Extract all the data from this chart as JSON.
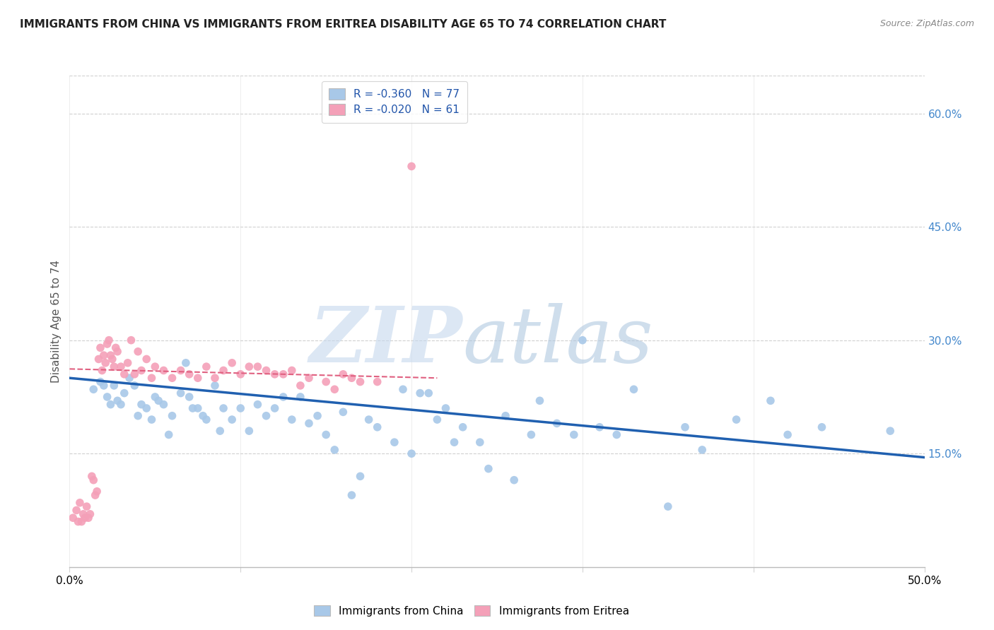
{
  "title": "IMMIGRANTS FROM CHINA VS IMMIGRANTS FROM ERITREA DISABILITY AGE 65 TO 74 CORRELATION CHART",
  "source": "Source: ZipAtlas.com",
  "ylabel": "Disability Age 65 to 74",
  "xlim": [
    0.0,
    0.5
  ],
  "ylim": [
    0.0,
    0.65
  ],
  "xticks": [
    0.0,
    0.1,
    0.2,
    0.3,
    0.4,
    0.5
  ],
  "xticklabels": [
    "0.0%",
    "",
    "",
    "",
    "",
    "50.0%"
  ],
  "yticks_right": [
    0.15,
    0.3,
    0.45,
    0.6
  ],
  "yticklabels_right": [
    "15.0%",
    "30.0%",
    "45.0%",
    "60.0%"
  ],
  "legend_china": "R = -0.360   N = 77",
  "legend_eritrea": "R = -0.020   N = 61",
  "china_color": "#a8c8e8",
  "eritrea_color": "#f4a0b8",
  "china_line_color": "#2060b0",
  "eritrea_line_color": "#e06080",
  "background_color": "#ffffff",
  "grid_color": "#d0d0d0",
  "right_axis_color": "#4488cc",
  "china_scatter_x": [
    0.014,
    0.018,
    0.02,
    0.022,
    0.024,
    0.026,
    0.028,
    0.03,
    0.032,
    0.035,
    0.038,
    0.04,
    0.042,
    0.045,
    0.048,
    0.05,
    0.052,
    0.055,
    0.058,
    0.06,
    0.065,
    0.068,
    0.07,
    0.072,
    0.075,
    0.078,
    0.08,
    0.085,
    0.088,
    0.09,
    0.095,
    0.1,
    0.105,
    0.11,
    0.115,
    0.12,
    0.125,
    0.13,
    0.135,
    0.14,
    0.145,
    0.15,
    0.155,
    0.16,
    0.165,
    0.17,
    0.175,
    0.18,
    0.19,
    0.195,
    0.2,
    0.205,
    0.21,
    0.215,
    0.22,
    0.225,
    0.23,
    0.24,
    0.245,
    0.255,
    0.26,
    0.27,
    0.275,
    0.285,
    0.295,
    0.3,
    0.31,
    0.32,
    0.33,
    0.35,
    0.36,
    0.37,
    0.39,
    0.41,
    0.42,
    0.44,
    0.48
  ],
  "china_scatter_y": [
    0.235,
    0.245,
    0.24,
    0.225,
    0.215,
    0.24,
    0.22,
    0.215,
    0.23,
    0.25,
    0.24,
    0.2,
    0.215,
    0.21,
    0.195,
    0.225,
    0.22,
    0.215,
    0.175,
    0.2,
    0.23,
    0.27,
    0.225,
    0.21,
    0.21,
    0.2,
    0.195,
    0.24,
    0.18,
    0.21,
    0.195,
    0.21,
    0.18,
    0.215,
    0.2,
    0.21,
    0.225,
    0.195,
    0.225,
    0.19,
    0.2,
    0.175,
    0.155,
    0.205,
    0.095,
    0.12,
    0.195,
    0.185,
    0.165,
    0.235,
    0.15,
    0.23,
    0.23,
    0.195,
    0.21,
    0.165,
    0.185,
    0.165,
    0.13,
    0.2,
    0.115,
    0.175,
    0.22,
    0.19,
    0.175,
    0.3,
    0.185,
    0.175,
    0.235,
    0.08,
    0.185,
    0.155,
    0.195,
    0.22,
    0.175,
    0.185,
    0.18
  ],
  "eritrea_scatter_x": [
    0.002,
    0.004,
    0.005,
    0.006,
    0.007,
    0.008,
    0.009,
    0.01,
    0.011,
    0.012,
    0.013,
    0.014,
    0.015,
    0.016,
    0.017,
    0.018,
    0.019,
    0.02,
    0.021,
    0.022,
    0.023,
    0.024,
    0.025,
    0.026,
    0.027,
    0.028,
    0.03,
    0.032,
    0.034,
    0.036,
    0.038,
    0.04,
    0.042,
    0.045,
    0.048,
    0.05,
    0.055,
    0.06,
    0.065,
    0.07,
    0.075,
    0.08,
    0.085,
    0.09,
    0.095,
    0.1,
    0.105,
    0.11,
    0.115,
    0.12,
    0.125,
    0.13,
    0.135,
    0.14,
    0.15,
    0.155,
    0.16,
    0.165,
    0.17,
    0.18,
    0.2
  ],
  "eritrea_scatter_y": [
    0.065,
    0.075,
    0.06,
    0.085,
    0.06,
    0.07,
    0.065,
    0.08,
    0.065,
    0.07,
    0.12,
    0.115,
    0.095,
    0.1,
    0.275,
    0.29,
    0.26,
    0.28,
    0.27,
    0.295,
    0.3,
    0.28,
    0.275,
    0.265,
    0.29,
    0.285,
    0.265,
    0.255,
    0.27,
    0.3,
    0.255,
    0.285,
    0.26,
    0.275,
    0.25,
    0.265,
    0.26,
    0.25,
    0.26,
    0.255,
    0.25,
    0.265,
    0.25,
    0.26,
    0.27,
    0.255,
    0.265,
    0.265,
    0.26,
    0.255,
    0.255,
    0.26,
    0.24,
    0.25,
    0.245,
    0.235,
    0.255,
    0.25,
    0.245,
    0.245,
    0.53
  ],
  "china_trend_x": [
    0.0,
    0.5
  ],
  "china_trend_y": [
    0.25,
    0.145
  ],
  "eritrea_trend_x": [
    0.0,
    0.215
  ],
  "eritrea_trend_y": [
    0.262,
    0.25
  ]
}
